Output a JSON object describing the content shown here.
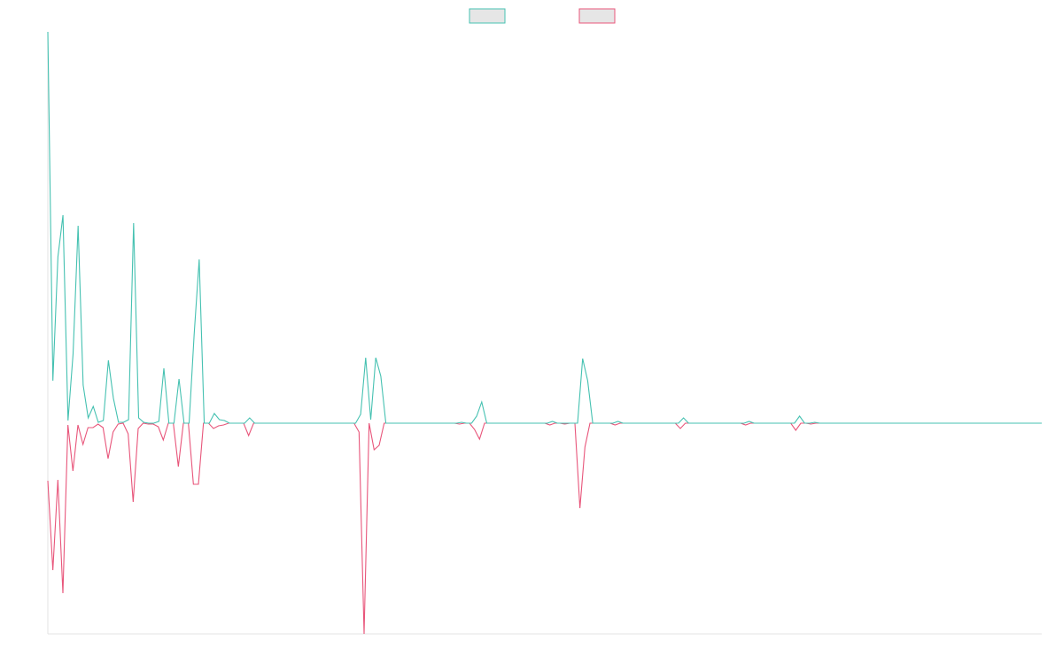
{
  "chart_data": {
    "type": "line",
    "legend": "top",
    "ylim": [
      -238,
      442
    ],
    "series": [
      {
        "color": "#45c1b1",
        "values": [
          442,
          48,
          188,
          235,
          3,
          78,
          223,
          43,
          6,
          19,
          1,
          3,
          71,
          28,
          1,
          1,
          4,
          226,
          6,
          1,
          0,
          0,
          2,
          62,
          0,
          0,
          50,
          0,
          0,
          100,
          185,
          0,
          0,
          11,
          4,
          3,
          0,
          0,
          0,
          0,
          6,
          0,
          0,
          0,
          0,
          0,
          0,
          0,
          0,
          0,
          0,
          0,
          0,
          0,
          0,
          0,
          0,
          0,
          0,
          0,
          0,
          0,
          10,
          74,
          4,
          74,
          53,
          0,
          0,
          0,
          0,
          0,
          0,
          0,
          0,
          0,
          0,
          0,
          0,
          0,
          0,
          0,
          1,
          0,
          0,
          8,
          24,
          0,
          0,
          0,
          0,
          0,
          0,
          0,
          0,
          0,
          0,
          0,
          0,
          0,
          2,
          0,
          0,
          0,
          0,
          0,
          73,
          48,
          0,
          0,
          0,
          0,
          0,
          2,
          0,
          0,
          0,
          0,
          0,
          0,
          0,
          0,
          0,
          0,
          0,
          0,
          6,
          0,
          0,
          0,
          0,
          0,
          0,
          0,
          0,
          0,
          0,
          0,
          0,
          2,
          0,
          0,
          0,
          0,
          0,
          0,
          0,
          0,
          0,
          8,
          0,
          0,
          1,
          0,
          0,
          0,
          0,
          0,
          0,
          0,
          0,
          0,
          0,
          0,
          0,
          0,
          0,
          0,
          0,
          0,
          0,
          0,
          0,
          0,
          0,
          0,
          0,
          0,
          0,
          0,
          0,
          0,
          0,
          0,
          0,
          0,
          0,
          0,
          0,
          0,
          0,
          0,
          0,
          0,
          0,
          0,
          0,
          0
        ]
      },
      {
        "color": "#e8557a",
        "values": [
          -65,
          -166,
          -64,
          -192,
          -2,
          -54,
          -2,
          -24,
          -5,
          -5,
          -1,
          -5,
          -40,
          -10,
          -1,
          0,
          -12,
          -89,
          -6,
          0,
          -1,
          -1,
          -4,
          -19,
          0,
          0,
          -49,
          0,
          0,
          -69,
          -69,
          0,
          0,
          -6,
          -3,
          -2,
          0,
          0,
          0,
          0,
          -14,
          0,
          0,
          0,
          0,
          0,
          0,
          0,
          0,
          0,
          0,
          0,
          0,
          0,
          0,
          0,
          0,
          0,
          0,
          0,
          0,
          0,
          -10,
          -238,
          0,
          -30,
          -25,
          0,
          0,
          0,
          0,
          0,
          0,
          0,
          0,
          0,
          0,
          0,
          0,
          0,
          0,
          0,
          -1,
          0,
          0,
          -7,
          -18,
          0,
          0,
          0,
          0,
          0,
          0,
          0,
          0,
          0,
          0,
          0,
          0,
          0,
          -2,
          0,
          0,
          -1,
          0,
          0,
          -96,
          -27,
          0,
          0,
          0,
          0,
          0,
          -2,
          0,
          0,
          0,
          0,
          0,
          0,
          0,
          0,
          0,
          0,
          0,
          0,
          -6,
          0,
          0,
          0,
          0,
          0,
          0,
          0,
          0,
          0,
          0,
          0,
          0,
          -2,
          0,
          0,
          0,
          0,
          0,
          0,
          0,
          0,
          0,
          -8,
          0,
          0,
          -1,
          0,
          0,
          0,
          0,
          0,
          0,
          0,
          0,
          0,
          0,
          0,
          0,
          0,
          0,
          0,
          0,
          0,
          0,
          0,
          0,
          0,
          0,
          0,
          0,
          0,
          0,
          0,
          0,
          0,
          0,
          0,
          0,
          0,
          0,
          0,
          0,
          0,
          0,
          0,
          0,
          0,
          0,
          0,
          0,
          0,
          0
        ]
      }
    ]
  }
}
